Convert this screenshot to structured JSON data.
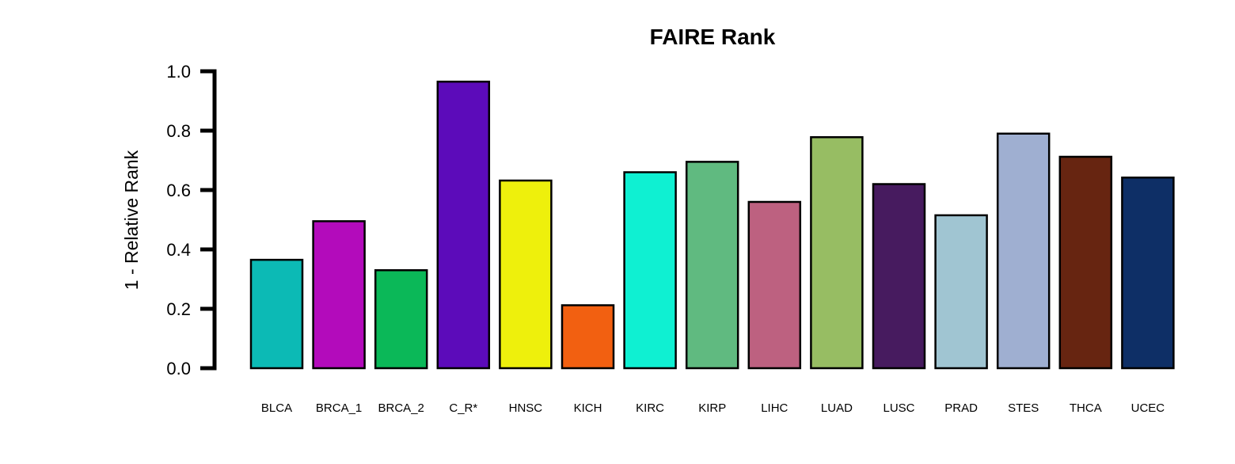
{
  "chart_data": {
    "type": "bar",
    "title": "FAIRE Rank",
    "xlabel": "",
    "ylabel": "1 - Relative Rank",
    "ylim": [
      0,
      1.0
    ],
    "yticks": [
      "0.0",
      "0.2",
      "0.4",
      "0.6",
      "0.8",
      "1.0"
    ],
    "grid": false,
    "legend": "none",
    "categories": [
      "BLCA",
      "BRCA_1",
      "BRCA_2",
      "C_R*",
      "HNSC",
      "KICH",
      "KIRC",
      "KIRP",
      "LIHC",
      "LUAD",
      "LUSC",
      "PRAD",
      "STES",
      "THCA",
      "UCEC"
    ],
    "values": [
      0.365,
      0.495,
      0.33,
      0.965,
      0.632,
      0.212,
      0.66,
      0.695,
      0.56,
      0.778,
      0.62,
      0.515,
      0.79,
      0.712,
      0.642
    ],
    "colors": [
      "#0CBAB5",
      "#B30BBB",
      "#0BB858",
      "#5C0BBA",
      "#EEF00C",
      "#F26011",
      "#0FF0D2",
      "#60BA80",
      "#BD6180",
      "#97BD63",
      "#471B5F",
      "#A0C5D2",
      "#9FAFD1",
      "#672511",
      "#0E2F66"
    ],
    "bar_outline_color": "#000000"
  }
}
